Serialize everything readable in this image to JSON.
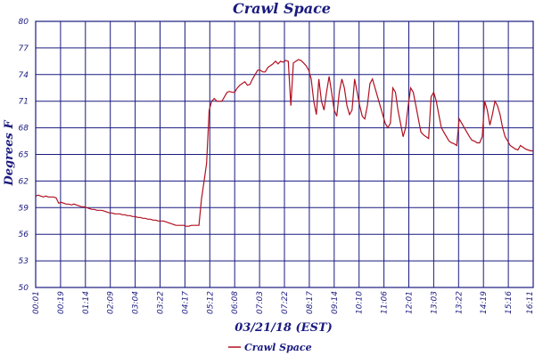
{
  "chart_data": {
    "type": "line",
    "title": "Crawl Space",
    "xlabel": "03/21/18 (EST)",
    "ylabel": "Degrees F",
    "ylim": [
      50,
      80
    ],
    "y_ticks": [
      "50",
      "53",
      "56",
      "59",
      "62",
      "65",
      "68",
      "71",
      "74",
      "77",
      "80"
    ],
    "x_tick_labels": [
      "00:01",
      "00:19",
      "01:14",
      "02:09",
      "03:04",
      "03:22",
      "04:17",
      "05:12",
      "06:08",
      "07:03",
      "07:22",
      "08:17",
      "09:14",
      "10:10",
      "11:06",
      "12:01",
      "13:03",
      "13:22",
      "14:19",
      "15:16",
      "16:11"
    ],
    "grid": true,
    "legend_position": "bottom-center",
    "colors": {
      "line": "#b01020",
      "text": "#1a1a80",
      "grid": "#1a1a80"
    },
    "series": [
      {
        "name": "Crawl Space",
        "values": [
          60.3,
          60.4,
          60.3,
          60.2,
          60.3,
          60.2,
          60.2,
          60.2,
          60.1,
          59.5,
          59.6,
          59.5,
          59.4,
          59.4,
          59.3,
          59.4,
          59.3,
          59.2,
          59.1,
          59.1,
          59.0,
          58.9,
          58.8,
          58.8,
          58.7,
          58.7,
          58.7,
          58.6,
          58.5,
          58.4,
          58.4,
          58.3,
          58.3,
          58.3,
          58.2,
          58.2,
          58.1,
          58.1,
          58.0,
          58.0,
          57.9,
          57.9,
          57.8,
          57.8,
          57.7,
          57.7,
          57.6,
          57.6,
          57.5,
          57.5,
          57.5,
          57.4,
          57.3,
          57.2,
          57.1,
          57.0,
          57.0,
          57.0,
          57.0,
          56.9,
          56.9,
          57.0,
          57.0,
          57.0,
          57.0,
          60.0,
          62.0,
          64.0,
          70.0,
          71.0,
          71.3,
          71.0,
          71.0,
          71.0,
          71.5,
          72.0,
          72.1,
          72.0,
          72.0,
          72.5,
          72.8,
          73.0,
          73.2,
          72.8,
          72.9,
          73.5,
          74.0,
          74.5,
          74.5,
          74.3,
          74.3,
          74.8,
          75.0,
          75.2,
          75.5,
          75.2,
          75.5,
          75.4,
          75.6,
          75.5,
          70.5,
          75.3,
          75.5,
          75.7,
          75.6,
          75.3,
          75.0,
          74.5,
          73.5,
          71.0,
          69.5,
          73.5,
          71.0,
          70.0,
          72.0,
          73.8,
          72.0,
          70.0,
          69.3,
          72.0,
          73.5,
          72.5,
          70.5,
          69.5,
          70.0,
          73.5,
          72.0,
          70.5,
          69.3,
          69.0,
          70.5,
          73.0,
          73.5,
          72.5,
          71.5,
          70.5,
          69.5,
          68.5,
          68.0,
          68.5,
          72.5,
          72.0,
          70.0,
          68.5,
          67.0,
          68.0,
          70.5,
          72.5,
          72.0,
          70.5,
          69.0,
          67.5,
          67.2,
          67.0,
          66.8,
          71.5,
          72.0,
          71.0,
          69.5,
          68.0,
          67.5,
          67.0,
          66.5,
          66.3,
          66.2,
          66.0,
          69.0,
          68.5,
          68.0,
          67.5,
          67.0,
          66.6,
          66.5,
          66.3,
          66.3,
          67.0,
          71.0,
          70.0,
          68.3,
          69.5,
          71.0,
          70.5,
          69.5,
          68.0,
          67.0,
          66.5,
          66.0,
          65.8,
          65.6,
          65.5,
          66.0,
          65.8,
          65.6,
          65.5,
          65.4,
          65.4
        ]
      }
    ]
  }
}
